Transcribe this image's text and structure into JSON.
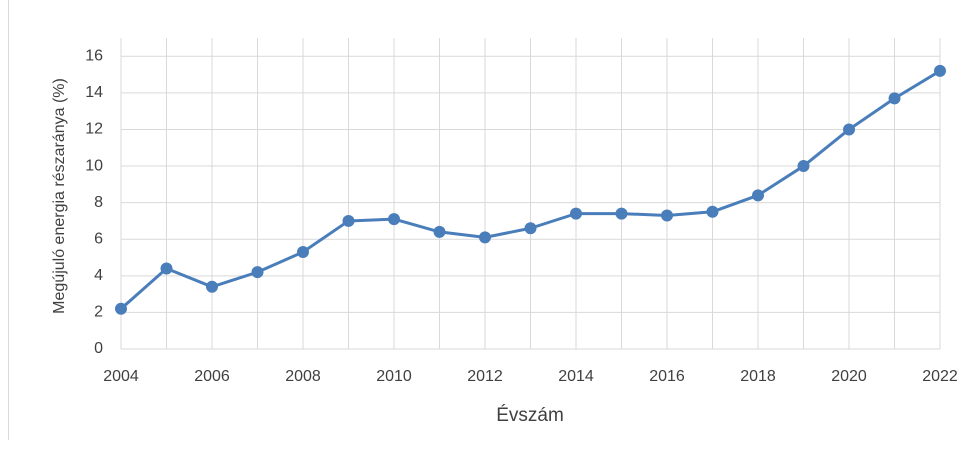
{
  "chart_data": {
    "type": "line",
    "x": [
      2004,
      2005,
      2006,
      2007,
      2008,
      2009,
      2010,
      2011,
      2012,
      2013,
      2014,
      2015,
      2016,
      2017,
      2018,
      2019,
      2020,
      2021,
      2022
    ],
    "series": [
      {
        "name": "Megújuló energia részaránya",
        "color": "#4a7ebb",
        "values": [
          2.2,
          4.4,
          3.4,
          4.2,
          5.3,
          7.0,
          7.1,
          6.4,
          6.1,
          6.6,
          7.4,
          7.4,
          7.3,
          7.5,
          8.4,
          10.0,
          12.0,
          13.7,
          15.2
        ]
      }
    ],
    "xlim": [
      2004,
      2022
    ],
    "xticks": [
      2004,
      2006,
      2008,
      2010,
      2012,
      2014,
      2016,
      2018,
      2020,
      2022
    ],
    "ylim": [
      0,
      17
    ],
    "yticks": [
      0,
      2,
      4,
      6,
      8,
      10,
      12,
      14,
      16
    ],
    "xlabel": "Évszám",
    "ylabel": "Megújuló energia részaránya (%)",
    "grid": true,
    "legend": false
  }
}
